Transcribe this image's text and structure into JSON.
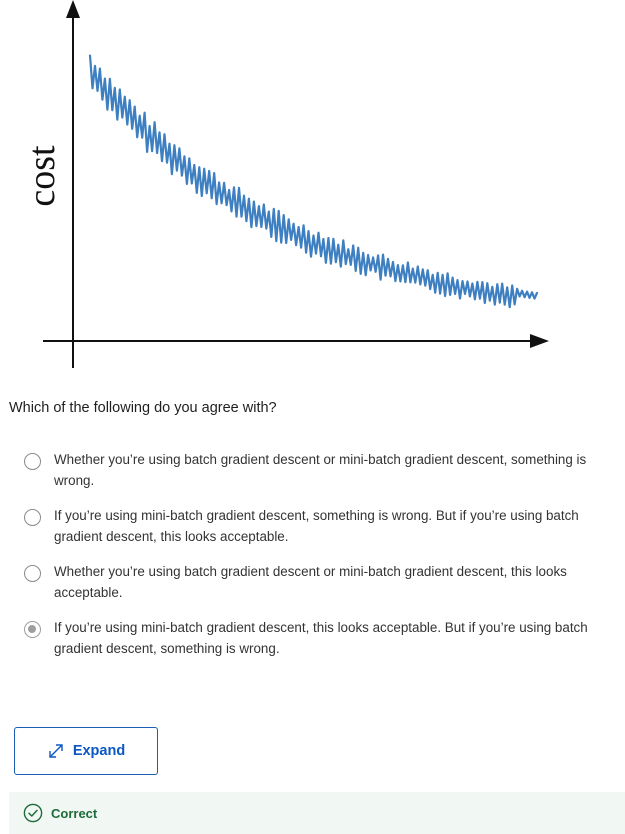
{
  "figure": {
    "ylabel": "cost"
  },
  "question": {
    "prompt": "Which of the following do you agree with?"
  },
  "options": [
    {
      "text": "Whether you’re using batch gradient descent or mini-batch gradient descent, something is wrong.",
      "selected": false
    },
    {
      "text": "If you’re using mini-batch gradient descent, something is wrong. But if you’re using batch gradient descent, this looks acceptable.",
      "selected": false
    },
    {
      "text": "Whether you’re using batch gradient descent or mini-batch gradient descent, this looks acceptable.",
      "selected": false
    },
    {
      "text": "If you’re using mini-batch gradient descent, this looks acceptable. But if you’re using batch gradient descent, something is wrong.",
      "selected": true
    }
  ],
  "expand_button": {
    "label": "Expand",
    "icon": "expand-arrows-icon"
  },
  "feedback": {
    "label": "Correct",
    "icon": "check-circle-icon",
    "color": "#1e6b3a"
  },
  "colors": {
    "curve": "#3d7fc1",
    "accent": "#0b57c4"
  }
}
